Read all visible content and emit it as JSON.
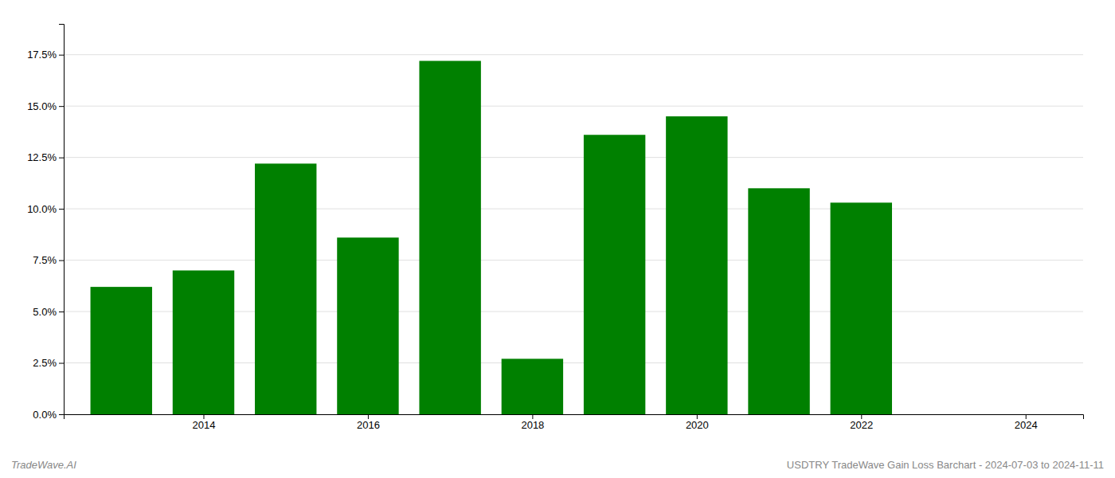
{
  "chart_data": {
    "type": "bar",
    "x": [
      2013,
      2014,
      2015,
      2016,
      2017,
      2018,
      2019,
      2020,
      2021,
      2022,
      2023
    ],
    "values": [
      0.062,
      0.07,
      0.122,
      0.086,
      0.172,
      0.027,
      0.136,
      0.145,
      0.11,
      0.103,
      0.0
    ],
    "color": "#008000",
    "xlim": [
      2012.3,
      2024.7
    ],
    "xticks": [
      2014,
      2016,
      2018,
      2020,
      2022,
      2024
    ],
    "ylim": [
      0.0,
      0.19
    ],
    "yticks": [
      {
        "value": 0.0,
        "label": "0.0%"
      },
      {
        "value": 0.025,
        "label": "2.5%"
      },
      {
        "value": 0.05,
        "label": "5.0%"
      },
      {
        "value": 0.075,
        "label": "7.5%"
      },
      {
        "value": 0.1,
        "label": "10.0%"
      },
      {
        "value": 0.125,
        "label": "12.5%"
      },
      {
        "value": 0.15,
        "label": "15.0%"
      },
      {
        "value": 0.175,
        "label": "17.5%"
      }
    ],
    "grid": true,
    "annotations": [
      "TradeWave.AI",
      "USDTRY TradeWave Gain Loss Barchart - 2024-07-03 to 2024-11-11"
    ]
  }
}
